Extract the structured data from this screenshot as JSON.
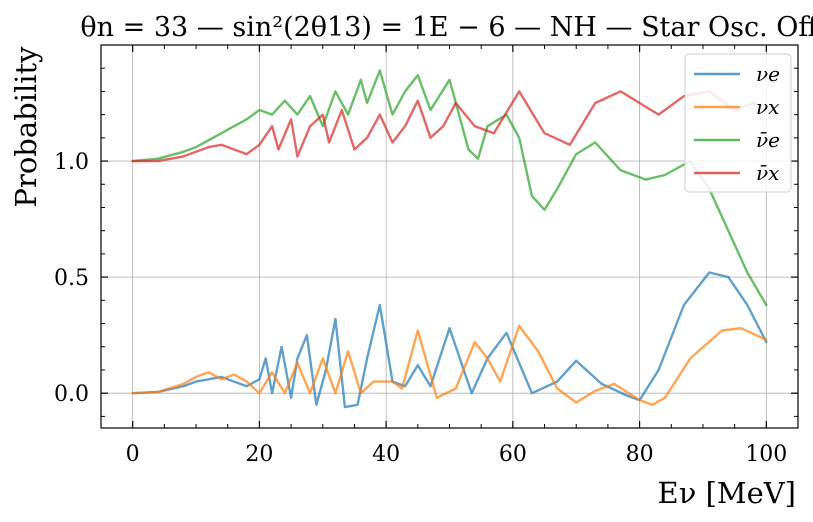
{
  "chart_data": {
    "type": "line",
    "title": "θn = 33 — sin²(2θ13) = 1E − 6 — NH — Star Osc. Off",
    "xlabel": "Eν [MeV]",
    "ylabel": "Probability",
    "xlim": [
      -5,
      105
    ],
    "ylim": [
      -0.15,
      1.5
    ],
    "xticks": [
      "0",
      "20",
      "40",
      "60",
      "80",
      "100"
    ],
    "xtick_values": [
      0,
      20,
      40,
      60,
      80,
      100
    ],
    "yticks": [
      "0.0",
      "0.5",
      "1.0"
    ],
    "ytick_values": [
      0.0,
      0.5,
      1.0
    ],
    "grid": true,
    "legend_position": "top-right",
    "series": [
      {
        "name": "νe",
        "color": "#1f77b4",
        "points": [
          [
            0,
            0.0
          ],
          [
            4,
            0.005
          ],
          [
            8,
            0.03
          ],
          [
            10,
            0.05
          ],
          [
            12,
            0.06
          ],
          [
            14,
            0.07
          ],
          [
            16,
            0.05
          ],
          [
            18,
            0.03
          ],
          [
            20,
            0.06
          ],
          [
            21,
            0.15
          ],
          [
            22,
            0.0
          ],
          [
            23.5,
            0.2
          ],
          [
            25,
            -0.02
          ],
          [
            26,
            0.15
          ],
          [
            27.5,
            0.25
          ],
          [
            29,
            -0.05
          ],
          [
            30.5,
            0.1
          ],
          [
            32,
            0.32
          ],
          [
            33.5,
            -0.06
          ],
          [
            35.5,
            -0.05
          ],
          [
            37,
            0.15
          ],
          [
            39,
            0.38
          ],
          [
            41,
            0.05
          ],
          [
            43,
            0.03
          ],
          [
            45,
            0.12
          ],
          [
            47,
            0.03
          ],
          [
            50,
            0.28
          ],
          [
            53.5,
            0.0
          ],
          [
            56,
            0.15
          ],
          [
            59,
            0.26
          ],
          [
            63,
            0.0
          ],
          [
            67,
            0.05
          ],
          [
            70,
            0.14
          ],
          [
            74,
            0.04
          ],
          [
            78,
            -0.01
          ],
          [
            80,
            -0.03
          ],
          [
            83,
            0.1
          ],
          [
            87,
            0.38
          ],
          [
            91,
            0.52
          ],
          [
            94,
            0.5
          ],
          [
            97,
            0.38
          ],
          [
            100,
            0.22
          ]
        ]
      },
      {
        "name": "νx",
        "color": "#ff7f0e",
        "points": [
          [
            0,
            0.0
          ],
          [
            4,
            0.005
          ],
          [
            8,
            0.04
          ],
          [
            10,
            0.07
          ],
          [
            12,
            0.09
          ],
          [
            14,
            0.06
          ],
          [
            16,
            0.08
          ],
          [
            18,
            0.05
          ],
          [
            20,
            0.0
          ],
          [
            22,
            0.09
          ],
          [
            24,
            0.0
          ],
          [
            26,
            0.13
          ],
          [
            28,
            0.0
          ],
          [
            30,
            0.15
          ],
          [
            32,
            0.0
          ],
          [
            34,
            0.18
          ],
          [
            36,
            0.0
          ],
          [
            38,
            0.05
          ],
          [
            41,
            0.05
          ],
          [
            42.5,
            0.02
          ],
          [
            45,
            0.27
          ],
          [
            48,
            -0.02
          ],
          [
            51,
            0.02
          ],
          [
            54,
            0.22
          ],
          [
            56,
            0.15
          ],
          [
            58,
            0.05
          ],
          [
            61,
            0.29
          ],
          [
            64,
            0.18
          ],
          [
            67,
            0.02
          ],
          [
            70,
            -0.04
          ],
          [
            73,
            0.01
          ],
          [
            76,
            0.04
          ],
          [
            80,
            -0.03
          ],
          [
            82,
            -0.05
          ],
          [
            84,
            -0.02
          ],
          [
            88,
            0.15
          ],
          [
            93,
            0.27
          ],
          [
            96,
            0.28
          ],
          [
            100,
            0.23
          ]
        ]
      },
      {
        "name": "ν̄e",
        "color": "#2ca02c",
        "points": [
          [
            0,
            1.0
          ],
          [
            4,
            1.01
          ],
          [
            8,
            1.04
          ],
          [
            10,
            1.06
          ],
          [
            12,
            1.09
          ],
          [
            14,
            1.12
          ],
          [
            16,
            1.15
          ],
          [
            18,
            1.18
          ],
          [
            20,
            1.22
          ],
          [
            22,
            1.2
          ],
          [
            24,
            1.26
          ],
          [
            26,
            1.2
          ],
          [
            28,
            1.28
          ],
          [
            30,
            1.15
          ],
          [
            32,
            1.3
          ],
          [
            34,
            1.2
          ],
          [
            36,
            1.35
          ],
          [
            37,
            1.25
          ],
          [
            39,
            1.39
          ],
          [
            41,
            1.2
          ],
          [
            43,
            1.3
          ],
          [
            45,
            1.37
          ],
          [
            47,
            1.22
          ],
          [
            50,
            1.35
          ],
          [
            53,
            1.05
          ],
          [
            54.5,
            1.01
          ],
          [
            56,
            1.15
          ],
          [
            59,
            1.2
          ],
          [
            61,
            1.1
          ],
          [
            63,
            0.85
          ],
          [
            65,
            0.79
          ],
          [
            67,
            0.88
          ],
          [
            70,
            1.03
          ],
          [
            73,
            1.08
          ],
          [
            77,
            0.96
          ],
          [
            81,
            0.92
          ],
          [
            84,
            0.94
          ],
          [
            88,
            1.0
          ],
          [
            91,
            0.88
          ],
          [
            94,
            0.7
          ],
          [
            97,
            0.52
          ],
          [
            100,
            0.38
          ]
        ]
      },
      {
        "name": "ν̄x",
        "color": "#d62728",
        "points": [
          [
            0,
            1.0
          ],
          [
            4,
            1.0
          ],
          [
            8,
            1.02
          ],
          [
            10,
            1.04
          ],
          [
            12,
            1.06
          ],
          [
            14,
            1.07
          ],
          [
            16,
            1.05
          ],
          [
            18,
            1.03
          ],
          [
            20,
            1.07
          ],
          [
            22,
            1.15
          ],
          [
            23,
            1.05
          ],
          [
            25,
            1.18
          ],
          [
            26,
            1.02
          ],
          [
            28,
            1.15
          ],
          [
            30,
            1.2
          ],
          [
            31,
            1.08
          ],
          [
            33,
            1.22
          ],
          [
            35,
            1.05
          ],
          [
            37,
            1.1
          ],
          [
            39,
            1.2
          ],
          [
            41,
            1.08
          ],
          [
            43,
            1.15
          ],
          [
            45,
            1.26
          ],
          [
            47,
            1.1
          ],
          [
            49,
            1.15
          ],
          [
            51,
            1.25
          ],
          [
            54,
            1.15
          ],
          [
            57,
            1.12
          ],
          [
            61,
            1.3
          ],
          [
            65,
            1.12
          ],
          [
            69,
            1.07
          ],
          [
            73,
            1.25
          ],
          [
            77,
            1.3
          ],
          [
            80,
            1.25
          ],
          [
            83,
            1.2
          ],
          [
            87,
            1.28
          ],
          [
            91,
            1.3
          ],
          [
            95,
            1.22
          ],
          [
            98,
            1.25
          ],
          [
            100,
            1.22
          ]
        ]
      }
    ]
  }
}
